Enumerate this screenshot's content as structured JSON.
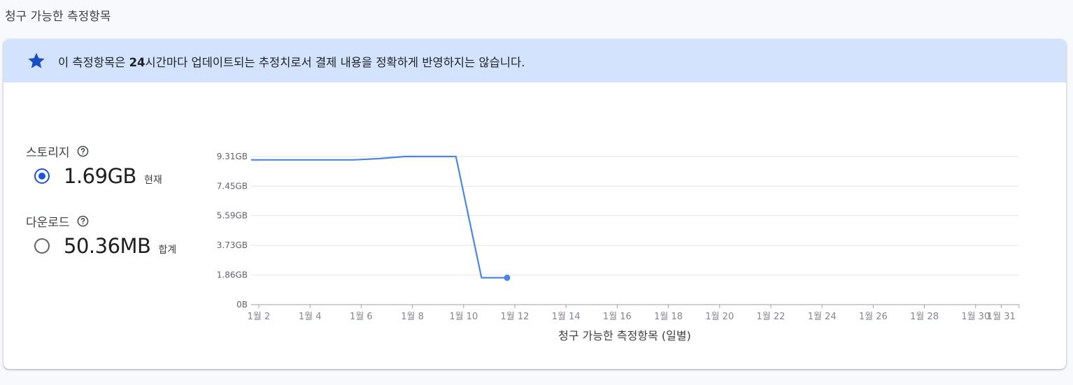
{
  "section_title": "청구 가능한 측정항목",
  "banner": {
    "icon": "star-icon",
    "text_before": "이 측정항목은 ",
    "text_bold": "24",
    "text_after": "시간마다 업데이트되는 추정치로서 결제 내용을 정확하게 반영하지는 않습니다."
  },
  "metrics": [
    {
      "label": "스토리지",
      "value": "1.69GB",
      "suffix": "현재",
      "selected": true
    },
    {
      "label": "다운로드",
      "value": "50.36MB",
      "suffix": "합계",
      "selected": false
    }
  ],
  "colors": {
    "accent": "#1a56d6",
    "line": "#4a86e8",
    "banner": "#d3e3fd"
  },
  "chart_data": {
    "type": "line",
    "xlabel": "청구 가능한 측정항목 (일별)",
    "x_tick_labels": [
      "1월 2",
      "1월 4",
      "1월 6",
      "1월 8",
      "1월 10",
      "1월 12",
      "1월 14",
      "1월 16",
      "1월 18",
      "1월 20",
      "1월 22",
      "1월 24",
      "1월 26",
      "1월 28",
      "1월 30",
      "1월 31"
    ],
    "x_tick_days": [
      2,
      4,
      6,
      8,
      10,
      12,
      14,
      16,
      18,
      20,
      22,
      24,
      26,
      28,
      30,
      31
    ],
    "y_tick_labels": [
      "0B",
      "1.86GB",
      "3.73GB",
      "5.59GB",
      "7.45GB",
      "9.31GB"
    ],
    "y_tick_values": [
      0,
      1.86,
      3.73,
      5.59,
      7.45,
      9.31
    ],
    "ylim": [
      0,
      9.31
    ],
    "xlim": [
      1.7,
      31.7
    ],
    "series": [
      {
        "points": [
          {
            "x": 1.7,
            "y": 9.1
          },
          {
            "x": 5.7,
            "y": 9.1
          },
          {
            "x": 6.7,
            "y": 9.18
          },
          {
            "x": 7.7,
            "y": 9.31
          },
          {
            "x": 9.7,
            "y": 9.31
          },
          {
            "x": 10.7,
            "y": 1.69
          },
          {
            "x": 11.7,
            "y": 1.69
          }
        ]
      }
    ],
    "last_point_marker": true,
    "grid": "horizontal"
  }
}
